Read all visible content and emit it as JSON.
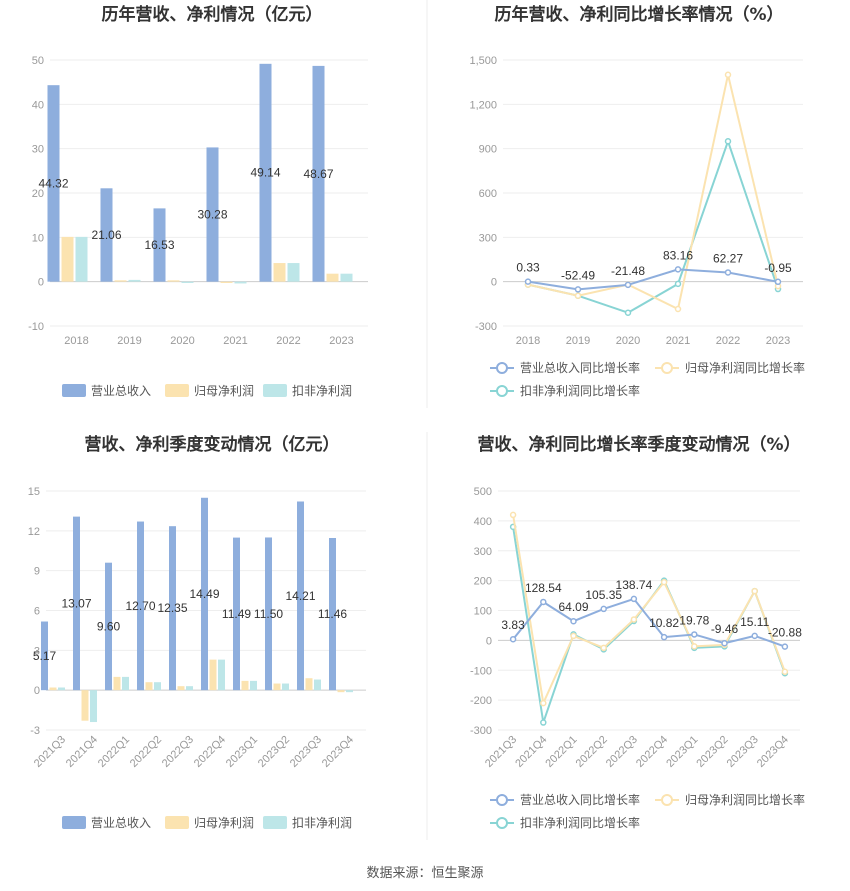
{
  "source_text": "数据来源：恒生聚源",
  "colors": {
    "revenue": "#8eaedd",
    "parent_profit": "#fbe3b0",
    "deducted_profit": "#bde6e8",
    "revenue_line": "#8eaedd",
    "parent_line": "#fbe3b0",
    "deducted_line": "#88d4d4"
  },
  "chart_data": [
    {
      "type": "bar",
      "title": "历年营收、净利情况（亿元）",
      "categories": [
        "2018",
        "2019",
        "2020",
        "2021",
        "2022",
        "2023"
      ],
      "ylim": [
        -10,
        50
      ],
      "yticks": [
        "-10",
        "0",
        "10",
        "20",
        "30",
        "40",
        "50"
      ],
      "series": [
        {
          "name": "营业总收入",
          "values": [
            44.32,
            21.06,
            16.53,
            30.28,
            49.14,
            48.67
          ],
          "labels": [
            "44.32",
            "21.06",
            "16.53",
            "30.28",
            "49.14",
            "48.67"
          ]
        },
        {
          "name": "归母净利润",
          "values": [
            10.1,
            0.3,
            0.3,
            -0.3,
            4.2,
            1.8
          ]
        },
        {
          "name": "扣非净利润",
          "values": [
            10.1,
            0.4,
            -0.3,
            -0.4,
            4.2,
            1.8
          ]
        }
      ],
      "legend_position": "bottom"
    },
    {
      "type": "line",
      "title": "历年营收、净利同比增长率情况（%）",
      "categories": [
        "2018",
        "2019",
        "2020",
        "2021",
        "2022",
        "2023"
      ],
      "ylim": [
        -300,
        1500
      ],
      "yticks": [
        "-300",
        "0",
        "300",
        "600",
        "900",
        "1,200",
        "1,500"
      ],
      "series": [
        {
          "name": "营业总收入同比增长率",
          "values": [
            0.33,
            -52.49,
            -21.48,
            83.16,
            62.27,
            -0.95
          ],
          "labels": [
            "0.33",
            "-52.49",
            "-21.48",
            "83.16",
            "62.27",
            "-0.95"
          ]
        },
        {
          "name": "归母净利润同比增长率",
          "values": [
            -20,
            -95,
            -20,
            -185,
            1400,
            -30
          ]
        },
        {
          "name": "扣非净利润同比增长率",
          "values": [
            -20,
            -95,
            -210,
            -15,
            950,
            -50
          ]
        }
      ],
      "legend_position": "bottom"
    },
    {
      "type": "bar",
      "title": "营收、净利季度变动情况（亿元）",
      "categories": [
        "2021Q3",
        "2021Q4",
        "2022Q1",
        "2022Q2",
        "2022Q3",
        "2022Q4",
        "2023Q1",
        "2023Q2",
        "2023Q3",
        "2023Q4"
      ],
      "ylim": [
        -3,
        15
      ],
      "yticks": [
        "-3",
        "0",
        "3",
        "6",
        "9",
        "12",
        "15"
      ],
      "series": [
        {
          "name": "营业总收入",
          "values": [
            5.17,
            13.07,
            9.6,
            12.7,
            12.35,
            14.49,
            11.49,
            11.5,
            14.21,
            11.46
          ],
          "labels": [
            "5.17",
            "13.07",
            "9.60",
            "12.70",
            "12.35",
            "14.49",
            "11.49",
            "11.50",
            "14.21",
            "11.46"
          ]
        },
        {
          "name": "归母净利润",
          "values": [
            0.2,
            -2.3,
            1.0,
            0.6,
            0.3,
            2.3,
            0.7,
            0.5,
            0.9,
            -0.15
          ]
        },
        {
          "name": "扣非净利润",
          "values": [
            0.2,
            -2.4,
            1.0,
            0.6,
            0.3,
            2.3,
            0.7,
            0.5,
            0.8,
            -0.15
          ]
        }
      ],
      "legend_position": "bottom"
    },
    {
      "type": "line",
      "title": "营收、净利同比增长率季度变动情况（%）",
      "categories": [
        "2021Q3",
        "2021Q4",
        "2022Q1",
        "2022Q2",
        "2022Q3",
        "2022Q4",
        "2023Q1",
        "2023Q2",
        "2023Q3",
        "2023Q4"
      ],
      "ylim": [
        -300,
        500
      ],
      "yticks": [
        "-300",
        "-200",
        "-100",
        "0",
        "100",
        "200",
        "300",
        "400",
        "500"
      ],
      "series": [
        {
          "name": "营业总收入同比增长率",
          "values": [
            3.83,
            128.54,
            64.09,
            105.35,
            138.74,
            10.82,
            19.78,
            -9.46,
            15.11,
            -20.88
          ],
          "labels": [
            "3.83",
            "128.54",
            "64.09",
            "105.35",
            "138.74",
            "10.82",
            "19.78",
            "-9.46",
            "15.11",
            "-20.88"
          ]
        },
        {
          "name": "归母净利润同比增长率",
          "values": [
            420,
            -210,
            15,
            -25,
            70,
            195,
            -20,
            -15,
            165,
            -105
          ]
        },
        {
          "name": "扣非净利润同比增长率",
          "values": [
            380,
            -275,
            20,
            -30,
            65,
            200,
            -25,
            -20,
            165,
            -110
          ]
        }
      ],
      "legend_position": "bottom"
    }
  ]
}
